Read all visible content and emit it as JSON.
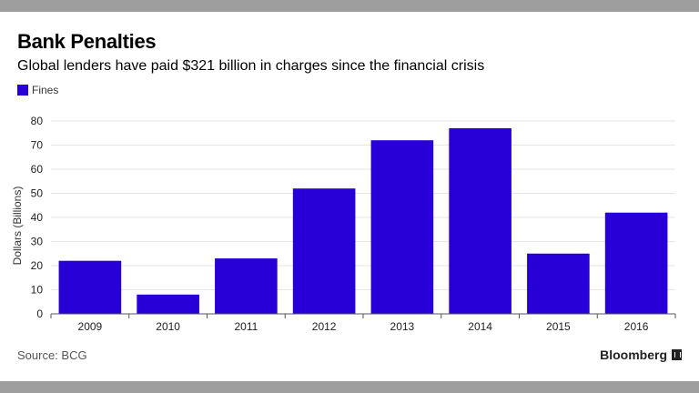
{
  "header": {
    "title": "Bank Penalties",
    "subtitle": "Global lenders have paid $321 billion in charges since the financial crisis"
  },
  "legend": {
    "label": "Fines"
  },
  "footer": {
    "source": "Source: BCG",
    "brand": "Bloomberg"
  },
  "colors": {
    "bar": "#2800d7",
    "grid": "#e6e6e6",
    "axis": "#555555"
  },
  "chart_data": {
    "type": "bar",
    "categories": [
      "2009",
      "2010",
      "2011",
      "2012",
      "2013",
      "2014",
      "2015",
      "2016"
    ],
    "series": [
      {
        "name": "Fines",
        "values": [
          22,
          8,
          23,
          52,
          72,
          77,
          25,
          42
        ]
      }
    ],
    "title": "Bank Penalties",
    "xlabel": "",
    "ylabel": "Dollars (Billions)",
    "ylim": [
      0,
      80
    ],
    "yticks": [
      0,
      10,
      20,
      30,
      40,
      50,
      60,
      70,
      80
    ],
    "grid": true,
    "legend_position": "top-left"
  }
}
